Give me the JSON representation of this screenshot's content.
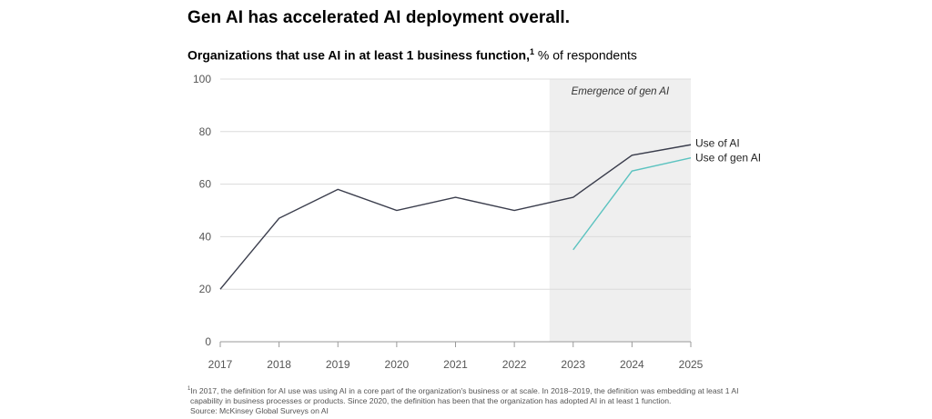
{
  "headline": "Gen AI has accelerated AI deployment overall.",
  "subtitle": {
    "bold": "Organizations that use AI in at least 1 business function,",
    "footnote_marker": "1",
    "regular": " % of respondents"
  },
  "chart_data": {
    "type": "line",
    "x": [
      "2017",
      "2018",
      "2019",
      "2020",
      "2021",
      "2022",
      "2023",
      "2024",
      "2025"
    ],
    "ylim": [
      0,
      100
    ],
    "y_ticks": [
      "0",
      "20",
      "40",
      "60",
      "80",
      "100"
    ],
    "grid": true,
    "series": [
      {
        "name": "Use of AI",
        "color": "#3a3d4c",
        "values": [
          20,
          47,
          58,
          50,
          55,
          50,
          55,
          71,
          75
        ]
      },
      {
        "name": "Use of gen AI",
        "color": "#5cc3c0",
        "values": [
          null,
          null,
          null,
          null,
          null,
          null,
          35,
          65,
          70
        ]
      }
    ],
    "highlight_region": {
      "label": "Emergence of gen AI",
      "from_index": 6,
      "color": "#efefef"
    }
  },
  "footnote": {
    "marker": "1",
    "line1": "In 2017, the definition for AI use was using AI in a core part of the organization's business or at scale. In 2018–2019, the definition was embedding at least 1 AI",
    "line2": "capability in business processes or products. Since 2020, the definition has been that the organization has adopted AI in at least 1 function.",
    "source": "Source: McKinsey Global Surveys on AI"
  }
}
